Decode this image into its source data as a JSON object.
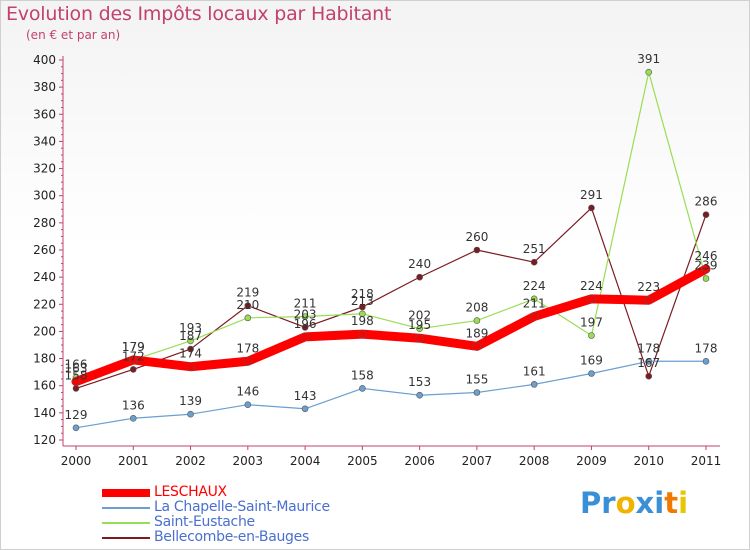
{
  "header": {
    "title": "Evolution des Impôts locaux par Habitant",
    "subtitle": "(en € et par an)"
  },
  "chart_data": {
    "type": "line",
    "x": [
      "2000",
      "2001",
      "2002",
      "2003",
      "2004",
      "2005",
      "2006",
      "2007",
      "2008",
      "2009",
      "2010",
      "2011"
    ],
    "ylim": [
      120,
      400
    ],
    "yticks": [
      120,
      140,
      160,
      180,
      200,
      220,
      240,
      260,
      280,
      300,
      320,
      340,
      360,
      380,
      400
    ],
    "grid": false,
    "legend_position": "bottom-left",
    "series": [
      {
        "name": "LESCHAUX",
        "color": "#ff0000",
        "values": [
          163,
          179,
          174,
          178,
          196,
          198,
          195,
          189,
          211,
          224,
          223,
          246
        ]
      },
      {
        "name": "La Chapelle-Saint-Maurice",
        "color": "#6a9fcf",
        "values": [
          129,
          136,
          139,
          146,
          143,
          158,
          153,
          155,
          161,
          169,
          178,
          178
        ]
      },
      {
        "name": "Saint-Eustache",
        "color": "#99dd55",
        "values": [
          166,
          179,
          193,
          210,
          211,
          213,
          202,
          208,
          224,
          197,
          391,
          239
        ]
      },
      {
        "name": "Bellecombe-en-Bauges",
        "color": "#7a1c22",
        "values": [
          158,
          172,
          187,
          219,
          203,
          218,
          240,
          260,
          251,
          291,
          167,
          286
        ]
      }
    ]
  },
  "logo": {
    "letters": [
      "P",
      "r",
      "o",
      "x",
      "i",
      "t",
      "i"
    ],
    "colors": [
      "#3b8fd6",
      "#3b8fd6",
      "#f0b400",
      "#3b8fd6",
      "#3b8fd6",
      "#f07a00",
      "#e7c700"
    ]
  }
}
